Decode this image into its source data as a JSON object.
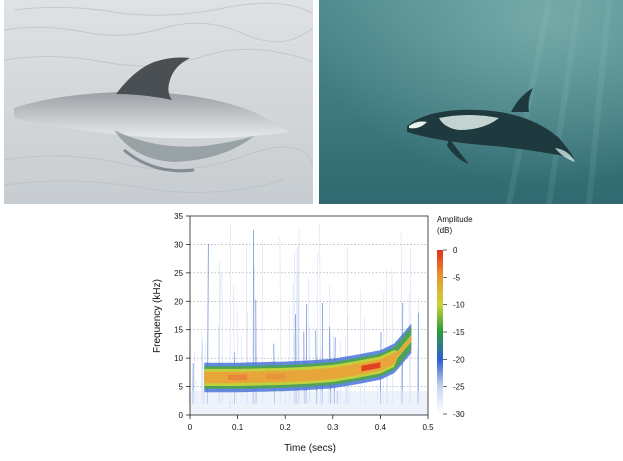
{
  "photos": {
    "left": {
      "subject": "dolphin-dorsal-fin-at-surface"
    },
    "right": {
      "subject": "dolphin-swimming-underwater"
    }
  },
  "chart_data": {
    "type": "heatmap",
    "title": "",
    "xlabel": "Time (secs)",
    "ylabel": "Frequency (kHz)",
    "xlim": [
      0,
      0.5
    ],
    "ylim": [
      0,
      35
    ],
    "xticks": [
      "0",
      "0.1",
      "0.2",
      "0.3",
      "0.4",
      "0.5"
    ],
    "yticks": [
      "0",
      "5",
      "10",
      "15",
      "20",
      "25",
      "30",
      "35"
    ],
    "grid": "horizontal dotted",
    "colorbar": {
      "label_line1": "Amplitude",
      "label_line2": "(dB)",
      "ticks": [
        "0",
        "-5",
        "-10",
        "-15",
        "-20",
        "-25",
        "-30"
      ],
      "range": [
        -30,
        0
      ],
      "colors": [
        "#ffffff",
        "#c8d4f0",
        "#2d5fd0",
        "#2a9a3a",
        "#c9d43a",
        "#e89a30",
        "#e0301e"
      ]
    },
    "band": {
      "start_s": 0.03,
      "end_s": 0.465,
      "center_khz": [
        [
          0.03,
          6.6
        ],
        [
          0.1,
          6.6
        ],
        [
          0.2,
          6.8
        ],
        [
          0.25,
          7.0
        ],
        [
          0.3,
          7.3
        ],
        [
          0.35,
          8.0
        ],
        [
          0.4,
          8.8
        ],
        [
          0.43,
          10.0
        ],
        [
          0.45,
          12.0
        ],
        [
          0.465,
          13.5
        ]
      ],
      "peak_amplitude_db": -2
    }
  }
}
